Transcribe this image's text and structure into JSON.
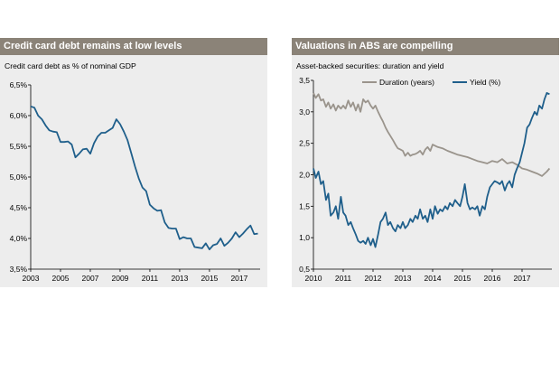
{
  "charts": [
    {
      "header": "Credit card debt remains at low levels",
      "subtitle": "Credit card debt as % of nominal GDP"
    },
    {
      "header": "Valuations in ABS are compelling",
      "subtitle": "Asset-backed securities: duration and yield"
    }
  ],
  "chart_data": [
    {
      "type": "line",
      "title": "Credit card debt remains at low levels",
      "subtitle": "Credit card debt as % of nominal GDP",
      "ylim": [
        3.5,
        6.5
      ],
      "yticks": [
        3.5,
        4.0,
        4.5,
        5.0,
        5.5,
        6.0,
        6.5
      ],
      "ytick_labels": [
        "3,5%",
        "4,0%",
        "4,5%",
        "5,0%",
        "5,5%",
        "6,0%",
        "6,5%"
      ],
      "xlim": [
        2003,
        2018.4
      ],
      "xticks": [
        2003,
        2005,
        2007,
        2009,
        2011,
        2013,
        2015,
        2017
      ],
      "xtick_labels": [
        "2003",
        "2005",
        "2007",
        "2009",
        "2011",
        "2013",
        "2015",
        "2017"
      ],
      "series": [
        {
          "color": "#1f5f8b",
          "x": [
            2003.0,
            2003.25,
            2003.5,
            2003.75,
            2004.0,
            2004.25,
            2004.5,
            2004.75,
            2005.0,
            2005.25,
            2005.5,
            2005.75,
            2006.0,
            2006.25,
            2006.5,
            2006.75,
            2007.0,
            2007.25,
            2007.5,
            2007.75,
            2008.0,
            2008.25,
            2008.5,
            2008.75,
            2009.0,
            2009.25,
            2009.5,
            2009.75,
            2010.0,
            2010.25,
            2010.5,
            2010.75,
            2011.0,
            2011.25,
            2011.5,
            2011.75,
            2012.0,
            2012.25,
            2012.5,
            2012.75,
            2013.0,
            2013.25,
            2013.5,
            2013.75,
            2014.0,
            2014.25,
            2014.5,
            2014.75,
            2015.0,
            2015.25,
            2015.5,
            2015.75,
            2016.0,
            2016.25,
            2016.5,
            2016.75,
            2017.0,
            2017.25,
            2017.5,
            2017.75,
            2018.0,
            2018.25
          ],
          "y": [
            6.15,
            6.13,
            6.0,
            5.94,
            5.84,
            5.76,
            5.74,
            5.73,
            5.57,
            5.57,
            5.58,
            5.53,
            5.32,
            5.38,
            5.45,
            5.46,
            5.38,
            5.55,
            5.66,
            5.72,
            5.72,
            5.76,
            5.8,
            5.94,
            5.86,
            5.74,
            5.6,
            5.39,
            5.17,
            4.98,
            4.83,
            4.77,
            4.55,
            4.49,
            4.45,
            4.46,
            4.26,
            4.17,
            4.16,
            4.16,
            3.99,
            4.02,
            4.0,
            4.0,
            3.86,
            3.85,
            3.84,
            3.92,
            3.82,
            3.89,
            3.91,
            4.0,
            3.88,
            3.93,
            4.0,
            4.1,
            4.02,
            4.08,
            4.15,
            4.21,
            4.07,
            4.08
          ]
        }
      ]
    },
    {
      "type": "line",
      "title": "Valuations in ABS are compelling",
      "subtitle": "Asset-backed securities: duration and yield",
      "ylim": [
        0.5,
        3.5
      ],
      "yticks": [
        0.5,
        1.0,
        1.5,
        2.0,
        2.5,
        3.0,
        3.5
      ],
      "ytick_labels": [
        "0,5",
        "1,0",
        "1,5",
        "2,0",
        "2,5",
        "3,0",
        "3,5"
      ],
      "xlim": [
        2010,
        2018.0
      ],
      "xticks": [
        2010,
        2011,
        2012,
        2013,
        2014,
        2015,
        2016,
        2017
      ],
      "xtick_labels": [
        "2010",
        "2011",
        "2012",
        "2013",
        "2014",
        "2015",
        "2016",
        "2017"
      ],
      "legend": "top",
      "series": [
        {
          "name": "Duration (years)",
          "color": "#9a948c",
          "x": [
            2010.0,
            2010.08,
            2010.17,
            2010.25,
            2010.33,
            2010.42,
            2010.5,
            2010.58,
            2010.67,
            2010.75,
            2010.83,
            2010.92,
            2011.0,
            2011.08,
            2011.17,
            2011.25,
            2011.33,
            2011.42,
            2011.5,
            2011.58,
            2011.67,
            2011.75,
            2011.83,
            2011.92,
            2012.0,
            2012.08,
            2012.17,
            2012.25,
            2012.33,
            2012.42,
            2012.5,
            2012.58,
            2012.67,
            2012.75,
            2012.83,
            2012.92,
            2013.0,
            2013.08,
            2013.17,
            2013.25,
            2013.33,
            2013.42,
            2013.5,
            2013.58,
            2013.67,
            2013.75,
            2013.83,
            2013.92,
            2014.0,
            2014.17,
            2014.33,
            2014.5,
            2014.67,
            2014.83,
            2015.0,
            2015.17,
            2015.33,
            2015.5,
            2015.67,
            2015.83,
            2016.0,
            2016.17,
            2016.33,
            2016.5,
            2016.67,
            2016.83,
            2017.0,
            2017.17,
            2017.33,
            2017.5,
            2017.67,
            2017.83,
            2017.92
          ],
          "y": [
            3.3,
            3.22,
            3.28,
            3.18,
            3.2,
            3.08,
            3.15,
            3.05,
            3.12,
            3.02,
            3.1,
            3.05,
            3.1,
            3.05,
            3.18,
            3.08,
            3.15,
            3.02,
            3.12,
            3.0,
            3.2,
            3.15,
            3.18,
            3.1,
            3.05,
            3.1,
            3.0,
            2.92,
            2.85,
            2.75,
            2.68,
            2.62,
            2.55,
            2.48,
            2.42,
            2.4,
            2.38,
            2.3,
            2.35,
            2.3,
            2.32,
            2.33,
            2.35,
            2.38,
            2.32,
            2.4,
            2.44,
            2.38,
            2.48,
            2.44,
            2.42,
            2.38,
            2.35,
            2.32,
            2.3,
            2.28,
            2.25,
            2.22,
            2.2,
            2.18,
            2.22,
            2.2,
            2.25,
            2.18,
            2.2,
            2.16,
            2.1,
            2.08,
            2.05,
            2.02,
            1.98,
            2.05,
            2.1
          ]
        },
        {
          "name": "Yield (%)",
          "color": "#1f5f8b",
          "x": [
            2010.0,
            2010.08,
            2010.17,
            2010.25,
            2010.33,
            2010.42,
            2010.5,
            2010.58,
            2010.67,
            2010.75,
            2010.83,
            2010.92,
            2011.0,
            2011.08,
            2011.17,
            2011.25,
            2011.33,
            2011.42,
            2011.5,
            2011.58,
            2011.67,
            2011.75,
            2011.83,
            2011.92,
            2012.0,
            2012.08,
            2012.17,
            2012.25,
            2012.33,
            2012.42,
            2012.5,
            2012.58,
            2012.67,
            2012.75,
            2012.83,
            2012.92,
            2013.0,
            2013.08,
            2013.17,
            2013.25,
            2013.33,
            2013.42,
            2013.5,
            2013.58,
            2013.67,
            2013.75,
            2013.83,
            2013.92,
            2014.0,
            2014.08,
            2014.17,
            2014.25,
            2014.33,
            2014.42,
            2014.5,
            2014.58,
            2014.67,
            2014.75,
            2014.83,
            2014.92,
            2015.0,
            2015.08,
            2015.17,
            2015.25,
            2015.33,
            2015.42,
            2015.5,
            2015.58,
            2015.67,
            2015.75,
            2015.83,
            2015.92,
            2016.0,
            2016.08,
            2016.17,
            2016.25,
            2016.33,
            2016.42,
            2016.5,
            2016.58,
            2016.67,
            2016.75,
            2016.83,
            2016.92,
            2017.0,
            2017.08,
            2017.17,
            2017.25,
            2017.33,
            2017.42,
            2017.5,
            2017.58,
            2017.67,
            2017.75,
            2017.83,
            2017.92
          ],
          "y": [
            2.1,
            1.95,
            2.05,
            1.85,
            1.9,
            1.6,
            1.7,
            1.35,
            1.4,
            1.5,
            1.3,
            1.65,
            1.4,
            1.35,
            1.2,
            1.25,
            1.15,
            1.05,
            0.95,
            0.92,
            0.95,
            0.9,
            1.0,
            0.88,
            0.98,
            0.85,
            1.05,
            1.25,
            1.3,
            1.4,
            1.2,
            1.25,
            1.15,
            1.1,
            1.2,
            1.15,
            1.25,
            1.15,
            1.2,
            1.3,
            1.25,
            1.35,
            1.3,
            1.45,
            1.3,
            1.35,
            1.25,
            1.45,
            1.3,
            1.5,
            1.38,
            1.45,
            1.42,
            1.5,
            1.45,
            1.55,
            1.5,
            1.6,
            1.55,
            1.5,
            1.65,
            1.85,
            1.55,
            1.45,
            1.48,
            1.45,
            1.5,
            1.35,
            1.5,
            1.45,
            1.65,
            1.8,
            1.85,
            1.9,
            1.88,
            1.85,
            1.9,
            1.75,
            1.85,
            1.9,
            1.8,
            2.0,
            2.1,
            2.2,
            2.35,
            2.5,
            2.75,
            2.8,
            2.9,
            3.0,
            2.95,
            3.1,
            3.05,
            3.2,
            3.3,
            3.28
          ]
        }
      ]
    }
  ]
}
